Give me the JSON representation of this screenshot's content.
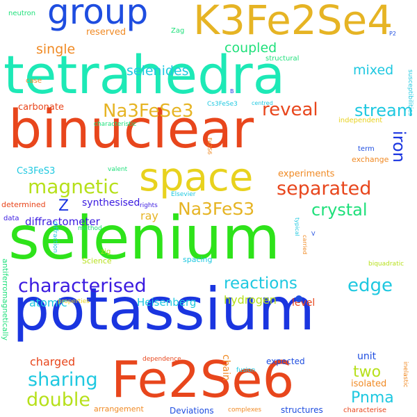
{
  "colors": {
    "background": "#ffffff",
    "teal": "#1de9b6",
    "green": "#2ee31a",
    "orange_red": "#e8461c",
    "blue": "#1a35e0",
    "royal_blue": "#1e4de0",
    "yellow": "#e8d21e",
    "gold": "#e6b424",
    "orange": "#f08a24",
    "lime": "#b6e01a",
    "cyan": "#1ec8e0",
    "indigo": "#3a1ae0",
    "sea_green": "#1ee07a"
  },
  "words": [
    "selenium",
    "potassium",
    "binuclear",
    "tetrahedra",
    "Fe2Se6",
    "K3Fe2Se4",
    "group",
    "space",
    "characterised",
    "magnetic",
    "Na3FeSe3",
    "separated",
    "crystal",
    "reveal",
    "Na3FeS3",
    "iron",
    "edge",
    "stream",
    "reactions",
    "double",
    "sharing",
    "coupled",
    "mixed",
    "selenides",
    "single",
    "two",
    "Pnma",
    "Heisenberg",
    "hydrogen",
    "atomic",
    "charged",
    "diffractometer",
    "ray",
    "Z",
    "synthesised",
    "experiments",
    "carbonate",
    "Cs3FeS3",
    "level",
    "unit",
    "reserved",
    "Zag",
    "neutron",
    "P2",
    "structural",
    "case",
    "B",
    "centred",
    "Cs3FeSe3",
    "characteristic",
    "independent",
    "term",
    "exchange",
    "valent",
    "Fe2S6",
    "Elsevier",
    "rights",
    "determined",
    "data",
    "method",
    "diffraction",
    "antiferromagnetically",
    "zig",
    "Science",
    "spacing",
    "properties",
    "chain",
    "dependence",
    "fusion",
    "expected",
    "isolated",
    "arrangement",
    "Deviations",
    "complexes",
    "structures",
    "characterise",
    "inelastic",
    "biquadratic",
    "typical",
    "carried",
    "susceptibilities",
    "V"
  ]
}
